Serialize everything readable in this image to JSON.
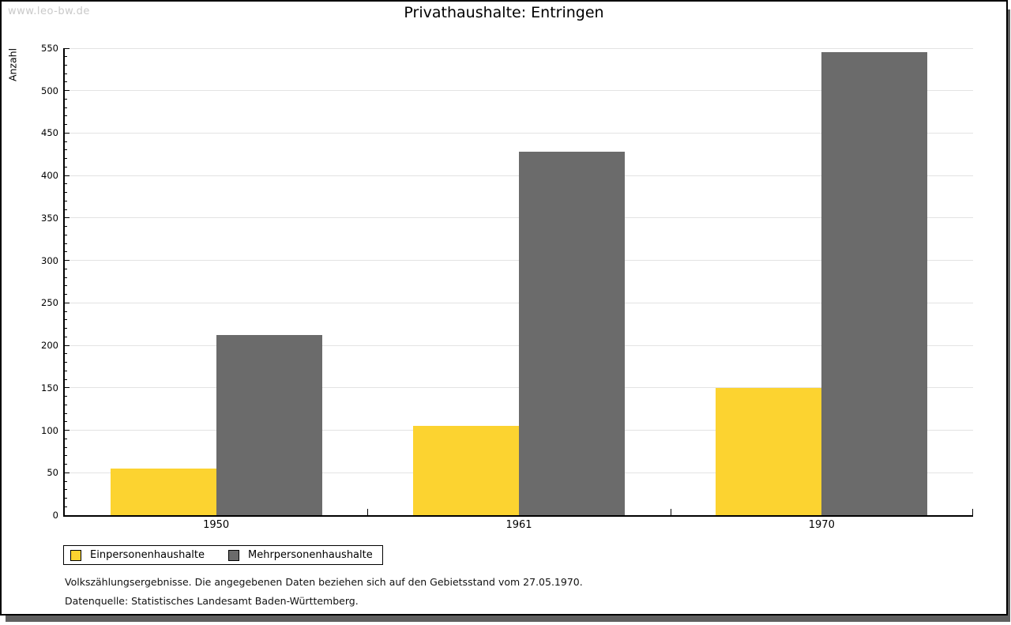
{
  "watermark": "www.leo-bw.de",
  "title": "Privathaushalte: Entringen",
  "chart_data": {
    "type": "bar",
    "title": "Privathaushalte: Entringen",
    "ylabel": "Anzahl",
    "xlabel": "",
    "categories": [
      "1950",
      "1961",
      "1970"
    ],
    "series": [
      {
        "name": "Einpersonenhaushalte",
        "color": "#fcd330",
        "values": [
          55,
          105,
          150
        ]
      },
      {
        "name": "Mehrpersonenhaushalte",
        "color": "#6b6b6b",
        "values": [
          212,
          428,
          545
        ]
      }
    ],
    "ylim": [
      0,
      550
    ],
    "ytick_step": 50,
    "yminor_step": 10,
    "grid": true,
    "gridline_color": "#e3e3e3",
    "legend_position": "bottom-left"
  },
  "footer": {
    "line1": "Volkszählungsergebnisse. Die angegebenen Daten beziehen sich auf den Gebietsstand vom 27.05.1970.",
    "line2": "Datenquelle: Statistisches Landesamt Baden-Württemberg."
  }
}
